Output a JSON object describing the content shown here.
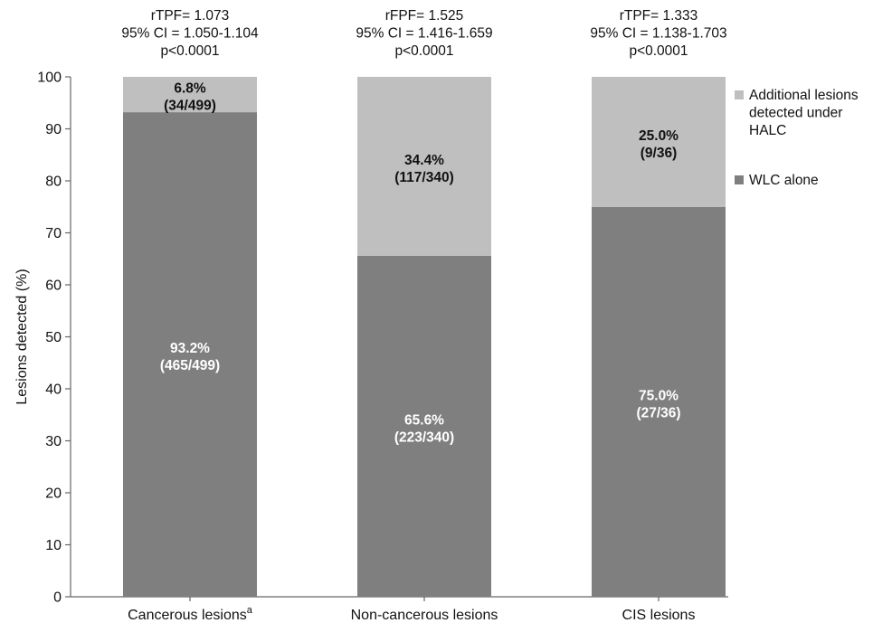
{
  "chart_data": {
    "type": "bar",
    "stacked": true,
    "ylabel": "Lesions detected (%)",
    "ylim": [
      0,
      100
    ],
    "yticks": [
      0,
      10,
      20,
      30,
      40,
      50,
      60,
      70,
      80,
      90,
      100
    ],
    "grid": false,
    "legend_position": "right",
    "categories": [
      {
        "label": "Cancerous lesions",
        "superscript": "a"
      },
      {
        "label": "Non-cancerous lesions",
        "superscript": ""
      },
      {
        "label": "CIS lesions",
        "superscript": ""
      }
    ],
    "series": [
      {
        "name": "WLC alone",
        "color": "#7f7f7f",
        "label_color": "#ffffff",
        "values": [
          93.2,
          65.6,
          75.0
        ],
        "labels": [
          "93.2%",
          "65.6%",
          "75.0%"
        ],
        "sublabels": [
          "(465/499)",
          "(223/340)",
          "(27/36)"
        ]
      },
      {
        "name": "Additional lesions detected under HALC",
        "name_lines": [
          "Additional lesions",
          "detected under",
          "HALC"
        ],
        "color": "#bfbfbf",
        "label_color": "#111111",
        "values": [
          6.8,
          34.4,
          25.0
        ],
        "labels": [
          "6.8%",
          "34.4%",
          "25.0%"
        ],
        "sublabels": [
          "(34/499)",
          "(117/340)",
          "(9/36)"
        ]
      }
    ],
    "annotations": [
      [
        "rTPF= 1.073",
        "95% CI = 1.050-1.104",
        "p<0.0001"
      ],
      [
        "rFPF= 1.525",
        "95% CI = 1.416-1.659",
        "p<0.0001"
      ],
      [
        "rTPF= 1.333",
        "95% CI = 1.138-1.703",
        "p<0.0001"
      ]
    ]
  }
}
